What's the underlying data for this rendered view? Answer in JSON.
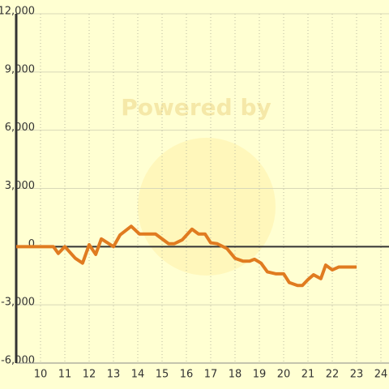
{
  "chart_data": {
    "type": "line",
    "watermark": "Powered by",
    "x": [
      9,
      10.53,
      10.73,
      11,
      11.43,
      11.73,
      12,
      12.27,
      12.5,
      13,
      13.27,
      13.73,
      14.07,
      14.73,
      15,
      15.27,
      15.5,
      15.83,
      16.23,
      16.5,
      16.77,
      17,
      17.27,
      17.67,
      18,
      18.33,
      18.6,
      18.8,
      19.07,
      19.33,
      19.67,
      20,
      20.23,
      20.57,
      20.77,
      21,
      21.23,
      21.53,
      21.73,
      22,
      22.27,
      23
    ],
    "series": [
      {
        "color": "#e07b20",
        "values": [
          0,
          0,
          -350,
          0,
          -600,
          -850,
          100,
          -400,
          400,
          0,
          600,
          1050,
          650,
          650,
          400,
          150,
          150,
          350,
          900,
          650,
          650,
          200,
          150,
          -100,
          -600,
          -750,
          -750,
          -650,
          -850,
          -1300,
          -1400,
          -1400,
          -1850,
          -2000,
          -2000,
          -1700,
          -1450,
          -1650,
          -950,
          -1200,
          -1050,
          -1050
        ]
      }
    ],
    "xlim": [
      9,
      24
    ],
    "xticks": [
      10,
      11,
      12,
      13,
      14,
      15,
      16,
      17,
      18,
      19,
      20,
      21,
      22,
      23,
      24
    ],
    "ylim": [
      -6000,
      12000
    ],
    "yticks": [
      {
        "value": -6000,
        "label": "-6,000"
      },
      {
        "value": -3000,
        "label": "-3,000"
      },
      0,
      {
        "value": 3000,
        "label": "3,000"
      },
      {
        "value": 6000,
        "label": "6,000"
      },
      {
        "value": 9000,
        "label": "9,000"
      },
      {
        "value": 12000,
        "label": "12,000"
      }
    ],
    "grid": true
  }
}
